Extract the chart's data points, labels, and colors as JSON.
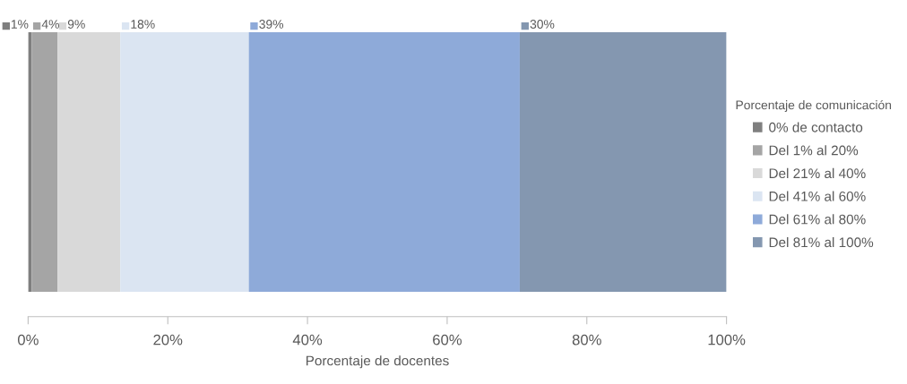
{
  "chart_data": {
    "type": "bar",
    "orientation": "horizontal",
    "stacked": true,
    "xlabel": "Porcentaje de docentes",
    "legend_title": "Porcentaje de comunicación",
    "legend": "right",
    "grid": false,
    "tick_labels": "x",
    "categories": [
      null
    ],
    "xlim": [
      0,
      100
    ],
    "xticks": [
      {
        "value": 0,
        "label": "0%"
      },
      {
        "value": 20,
        "label": "20%"
      },
      {
        "value": 40,
        "label": "40%"
      },
      {
        "value": 60,
        "label": "60%"
      },
      {
        "value": 80,
        "label": "80%"
      },
      {
        "value": 100,
        "label": "100%"
      }
    ],
    "series": [
      {
        "name": "0% de contacto",
        "color": "#7f7f7f",
        "values": [
          0.5
        ],
        "value_labels": [
          "1%"
        ]
      },
      {
        "name": "Del 1% al 20%",
        "color": "#a5a5a5",
        "values": [
          3.7
        ],
        "value_labels": [
          "4%"
        ]
      },
      {
        "name": "Del 21% al 40%",
        "color": "#d9d9d9",
        "values": [
          9.0
        ],
        "value_labels": [
          "9%"
        ]
      },
      {
        "name": "Del 41% al 60%",
        "color": "#dbe5f2",
        "values": [
          18.4
        ],
        "value_labels": [
          "18%"
        ]
      },
      {
        "name": "Del 61% al 80%",
        "color": "#8eaad9",
        "values": [
          38.8
        ],
        "value_labels": [
          "39%"
        ]
      },
      {
        "name": "Del 81% al 100%",
        "color": "#8497b0",
        "values": [
          29.6
        ],
        "value_labels": [
          "30%"
        ]
      }
    ]
  }
}
